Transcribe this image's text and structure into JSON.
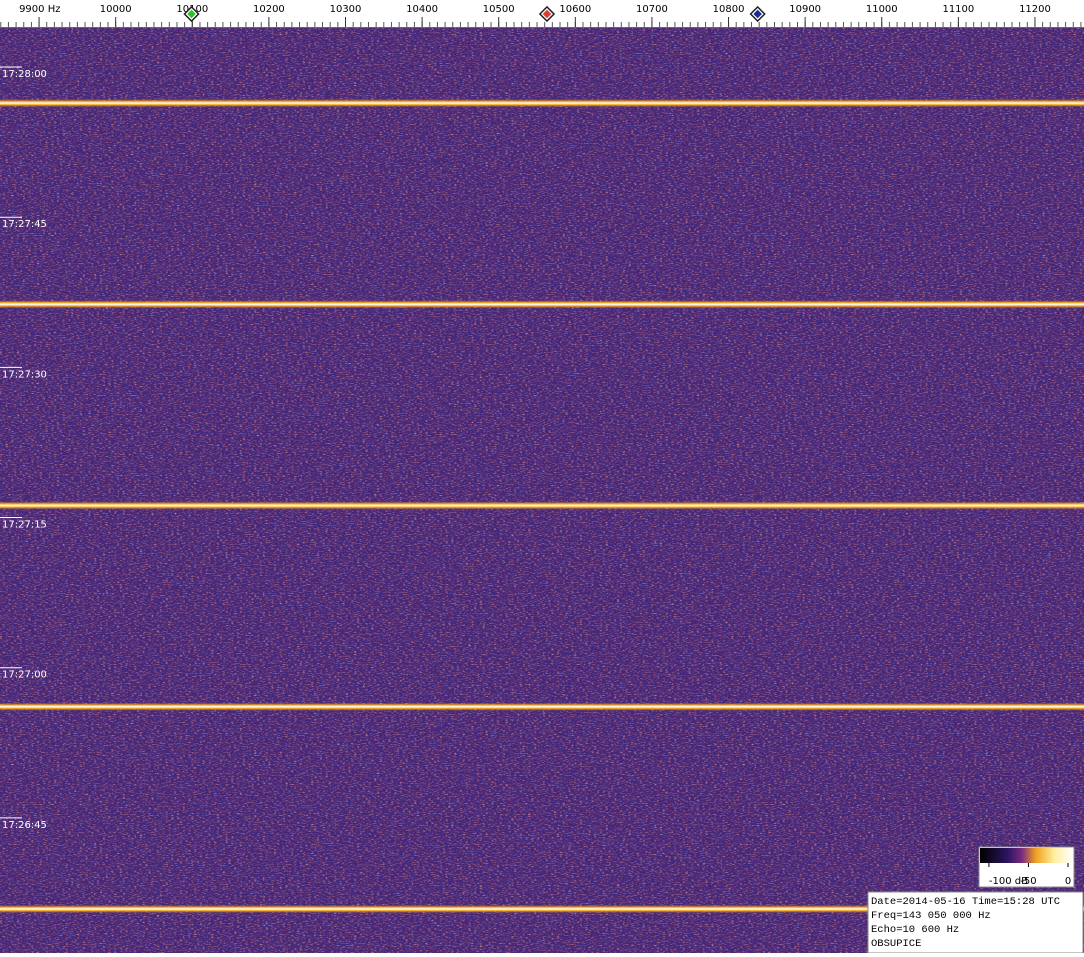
{
  "chart_data": {
    "type": "spectrogram",
    "xlim": [
      9849,
      11264
    ],
    "xticks": [
      {
        "value": 9900,
        "label": "9900 Hz"
      },
      10000,
      10100,
      10200,
      10300,
      10400,
      10500,
      10600,
      10700,
      10800,
      10900,
      11000,
      11100,
      11200
    ],
    "xminor_step": 10,
    "ylim": [
      62883.9,
      62791.5
    ],
    "yticks": [
      {
        "value": 62880,
        "label": "17:28:00"
      },
      {
        "value": 62865,
        "label": "17:27:45"
      },
      {
        "value": 62850,
        "label": "17:27:30"
      },
      {
        "value": 62835,
        "label": "17:27:15"
      },
      {
        "value": 62820,
        "label": "17:27:00"
      },
      {
        "value": 62805,
        "label": "17:26:45"
      }
    ],
    "signal_times": [
      62876.4,
      62856.3,
      62836.2,
      62816.1,
      62795.9
    ],
    "markers": [
      {
        "color": "#2fbf2f",
        "x": 10099
      },
      {
        "color": "#e03a2a",
        "x": 10563
      },
      {
        "color": "#1a2a9a",
        "x": 10838
      }
    ],
    "colorbar": {
      "ticks": [
        {
          "value": -100,
          "label": "-100 dB"
        },
        -50,
        0
      ],
      "lim": [
        -110,
        0
      ]
    },
    "info": [
      "Date=2014-05-16 Time=15:28 UTC",
      "Freq=143 050 000 Hz",
      "Echo=10 600 Hz",
      "OBSUPICE"
    ]
  }
}
